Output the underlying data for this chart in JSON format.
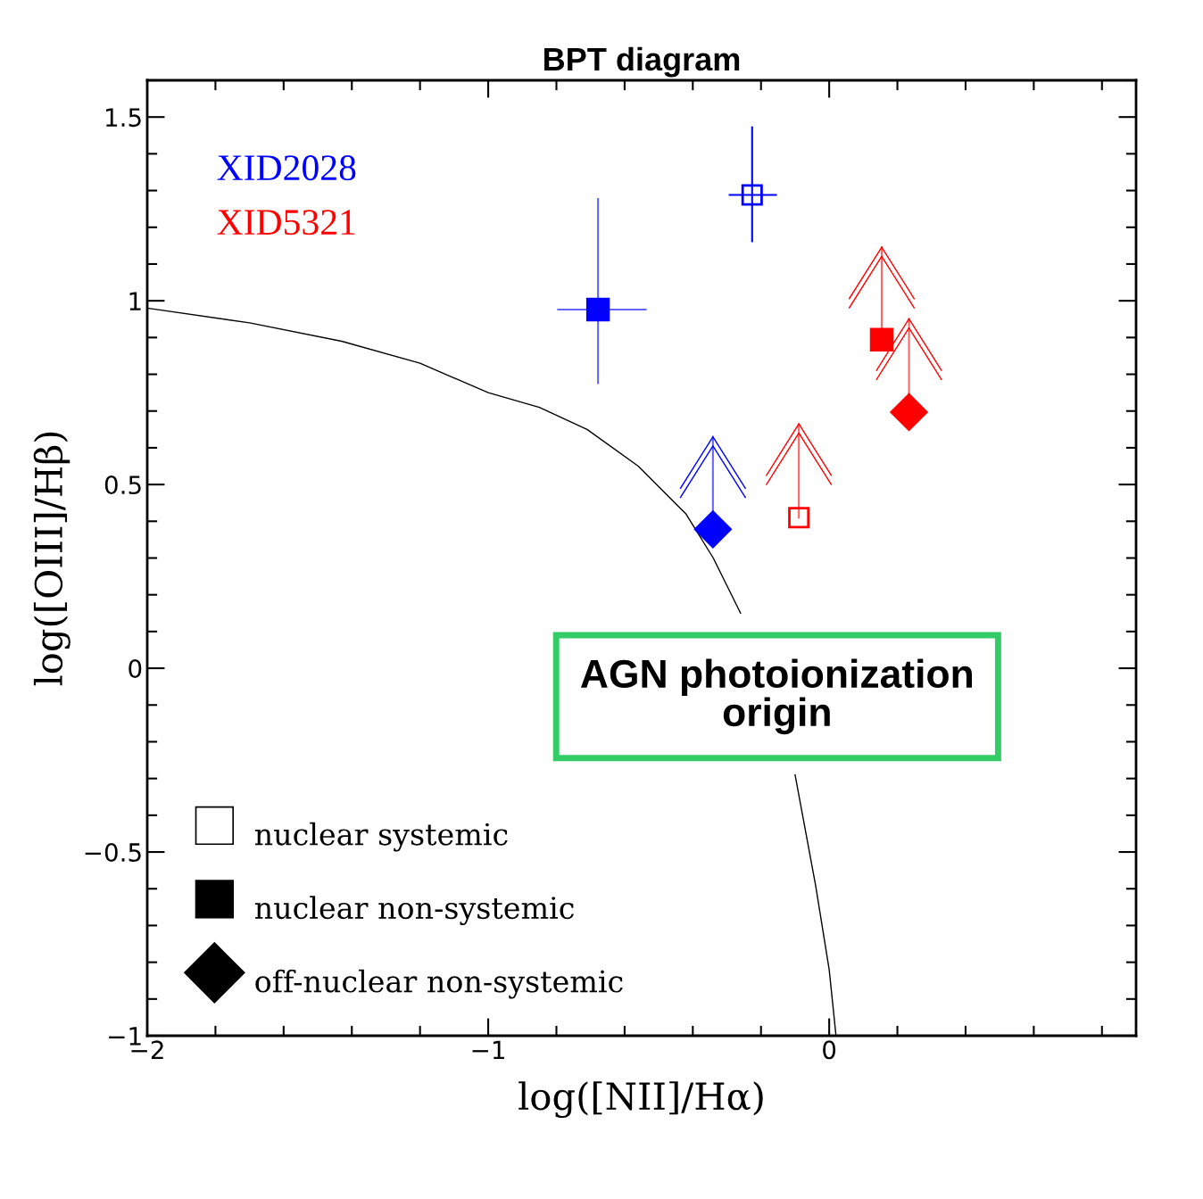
{
  "chart_data": {
    "type": "scatter",
    "title": "BPT diagram",
    "xlabel": "log([NII]/Hα)",
    "ylabel": "log([OIII]/Hβ)",
    "xlim": [
      -2,
      0.9
    ],
    "ylim": [
      -1,
      1.6
    ],
    "xticks": [
      {
        "value": -2,
        "label": "−2"
      },
      {
        "value": -1,
        "label": "−1"
      },
      0
    ],
    "yticks": [
      {
        "value": -1,
        "label": "−1"
      },
      {
        "value": -0.5,
        "label": "−0.5"
      },
      0,
      0.5,
      1,
      1.5
    ],
    "grid": false,
    "annotations": [
      "XID2028",
      "XID5321",
      "AGN photoionization\norigin",
      "nuclear systemic",
      "nuclear non-systemic",
      "off-nuclear non-systemic"
    ],
    "series": [
      {
        "marker": "square-open",
        "colors": [
          "#0000ff",
          "#ff0000"
        ],
        "x": [
          -0.226,
          -0.089
        ],
        "values": [
          1.288,
          0.41
        ],
        "errors": [
          [
            1.162,
            1.472
          ],
          [
            0.41,
            0.665
          ]
        ],
        "xerrors": [
          [
            -0.292,
            -0.156
          ],
          null
        ]
      },
      {
        "marker": "square",
        "colors": [
          "#0000ff",
          "#ff0000"
        ],
        "x": [
          -0.678,
          0.154
        ],
        "values": [
          0.976,
          0.894
        ],
        "errors": [
          [
            0.776,
            1.277
          ],
          [
            0.894,
            1.146
          ]
        ],
        "xerrors": [
          [
            -0.795,
            -0.538
          ],
          null
        ]
      },
      {
        "marker": "diamond",
        "colors": [
          "#0000ff",
          "#ff0000"
        ],
        "x": [
          -0.341,
          0.234
        ],
        "values": [
          0.378,
          0.697
        ],
        "errors": [
          [
            0.378,
            0.63
          ],
          [
            0.697,
            0.951
          ]
        ]
      },
      {
        "type": "line",
        "color": "#000000",
        "x": [
          -2.0,
          -1.7,
          -1.43,
          -1.2,
          -1.0,
          -0.85,
          -0.71,
          -0.56,
          -0.42,
          -0.34,
          -0.26,
          -0.18,
          -0.1,
          -0.04,
          0.0,
          0.02
        ],
        "values": [
          0.98,
          0.94,
          0.89,
          0.83,
          0.75,
          0.71,
          0.65,
          0.55,
          0.42,
          0.3,
          0.15,
          null,
          -0.29,
          -0.59,
          -0.82,
          -1.0
        ]
      }
    ]
  }
}
